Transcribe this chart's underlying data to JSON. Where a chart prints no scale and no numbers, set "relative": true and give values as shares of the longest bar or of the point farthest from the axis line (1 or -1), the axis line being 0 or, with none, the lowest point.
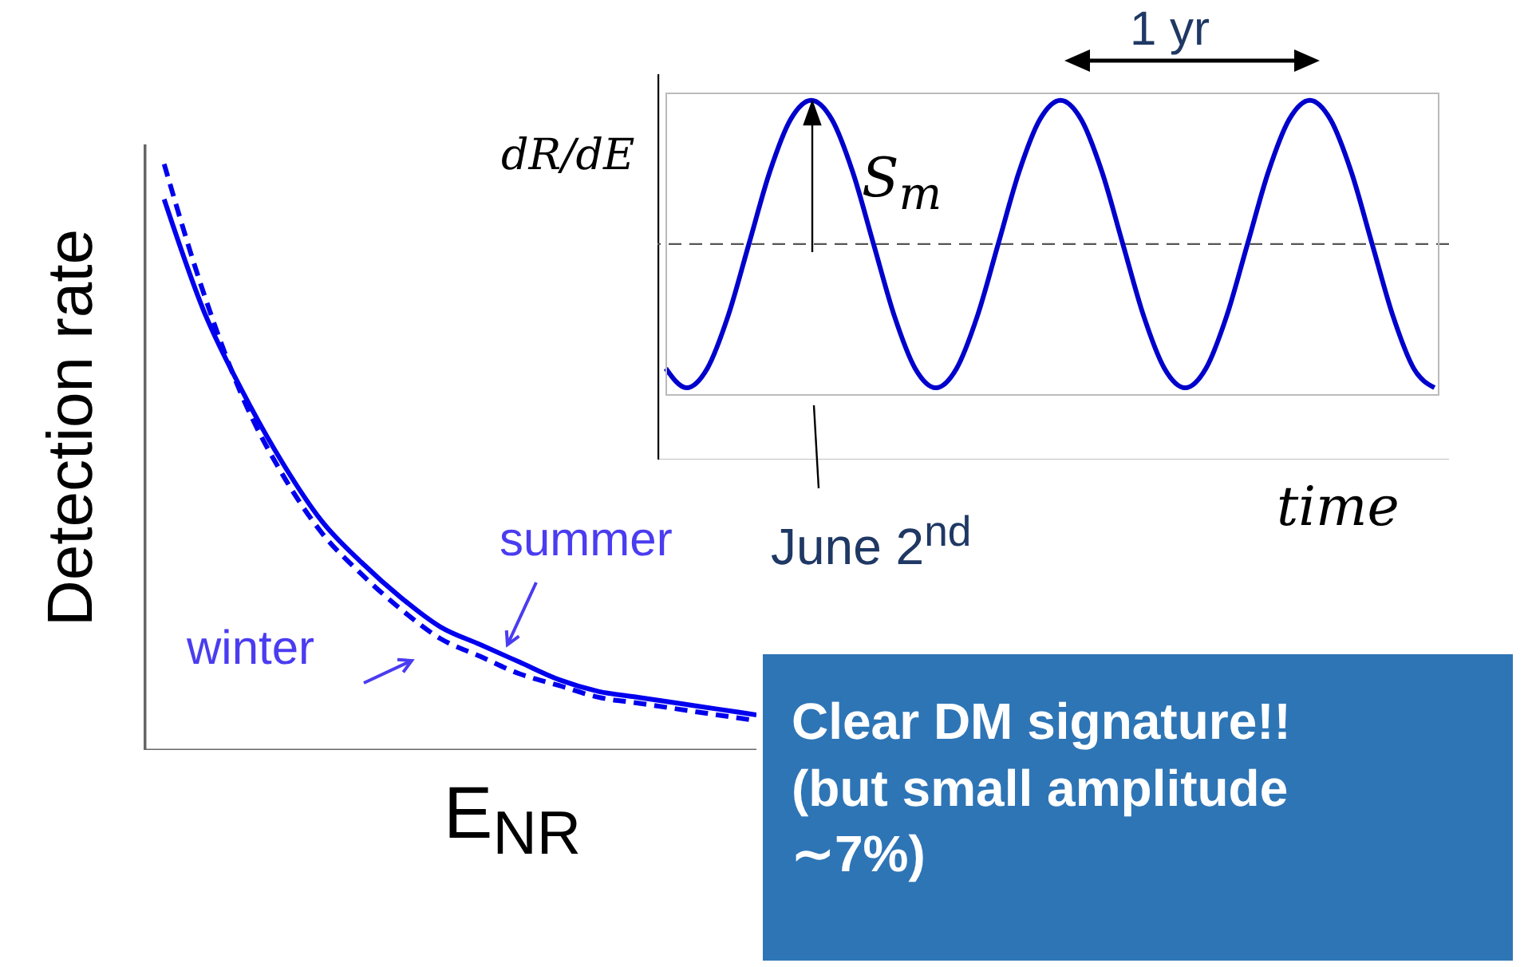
{
  "chart_data": [
    {
      "type": "line",
      "xlabel": "E$_{NR}$",
      "ylabel": "Detection rate",
      "relative": true,
      "categories": [
        null,
        null,
        null,
        null,
        null,
        null,
        null,
        null,
        null,
        null,
        null,
        null,
        null,
        null,
        null,
        null
      ],
      "series": [
        {
          "name": "summer",
          "color": "#0000ee",
          "line_style": "solid",
          "values": [
            0.94,
            0.75,
            0.61,
            0.49,
            0.39,
            0.32,
            0.26,
            0.21,
            0.18,
            0.15,
            0.12,
            0.1,
            0.09,
            0.08,
            0.07,
            0.06
          ]
        },
        {
          "name": "winter",
          "color": "#0000ee",
          "line_style": "dashed",
          "values": [
            1.0,
            0.78,
            0.6,
            0.47,
            0.37,
            0.3,
            0.24,
            0.19,
            0.16,
            0.13,
            0.11,
            0.09,
            0.08,
            0.07,
            0.06,
            0.05
          ]
        }
      ]
    },
    {
      "type": "line",
      "xlabel": "time",
      "ylabel": "dR/dE",
      "relative": true,
      "categories": [
        null,
        null,
        null,
        null,
        null,
        null,
        null,
        null,
        null,
        null,
        null,
        null,
        null,
        null,
        null,
        null,
        null,
        null,
        null,
        null,
        null,
        null,
        null,
        null,
        null,
        null,
        null,
        null,
        null,
        null,
        null,
        null,
        null,
        null,
        null,
        null,
        null,
        null
      ],
      "series": [
        {
          "color": "#0000cc",
          "line_style": "solid",
          "values": [
            0.254,
            0.2,
            0.254,
            0.4,
            0.6,
            0.8,
            0.946,
            1,
            0.946,
            0.8,
            0.6,
            0.4,
            0.254,
            0.2,
            0.254,
            0.4,
            0.6,
            0.8,
            0.946,
            1,
            0.946,
            0.8,
            0.6,
            0.4,
            0.254,
            0.2,
            0.254,
            0.4,
            0.6,
            0.8,
            0.946,
            1,
            0.946,
            0.8,
            0.6,
            0.4,
            0.254,
            0.2
          ]
        }
      ],
      "ref_lines": [
        {
          "axis": "y",
          "value": 0.6,
          "line_style": "dashed",
          "color": "#555555"
        }
      ],
      "annotations": [
        "S$_{m}$",
        "1 yr",
        "June 2$^{nd}$"
      ]
    },
    {
      "type": "other",
      "annotations": [
        "Clear DM signature!!",
        "(but small amplitude ∼7%)"
      ]
    }
  ]
}
